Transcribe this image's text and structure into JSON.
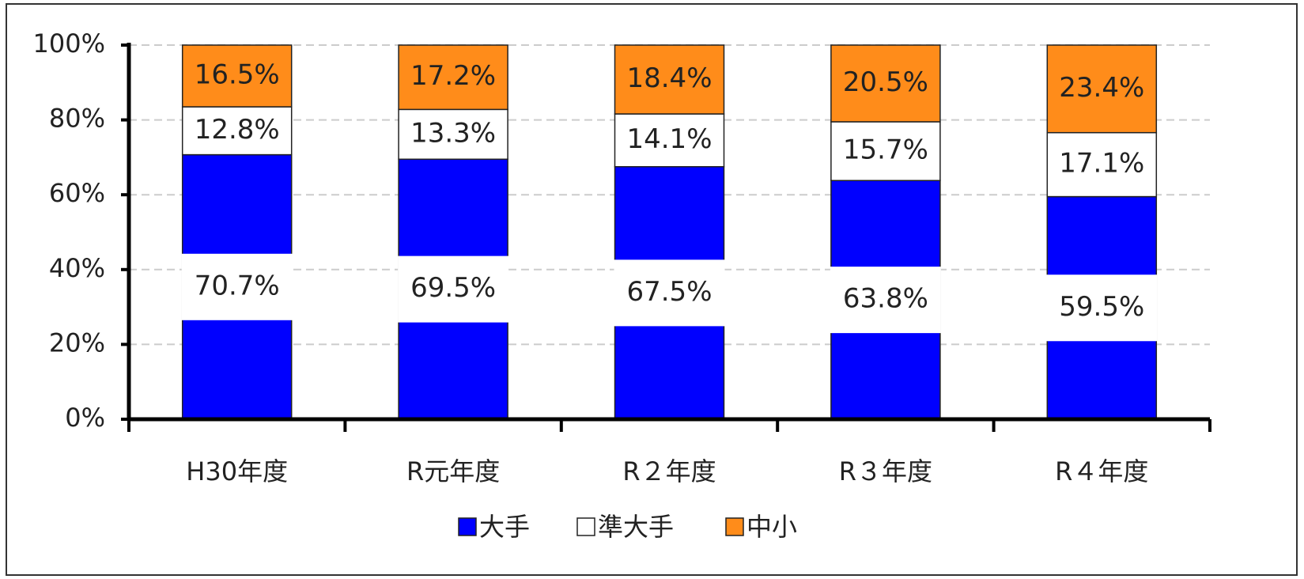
{
  "chart_data": {
    "type": "stacked_bar",
    "categories": [
      "H30年度",
      "R元年度",
      "R２年度",
      "R３年度",
      "R４年度"
    ],
    "series": [
      {
        "name": "大手",
        "color": "#0000ff",
        "values": [
          70.7,
          69.5,
          67.5,
          63.8,
          59.5
        ],
        "value_labels": [
          "70.7%",
          "69.5%",
          "67.5%",
          "63.8%",
          "59.5%"
        ]
      },
      {
        "name": "準大手",
        "color": "#ffffff",
        "values": [
          12.8,
          13.3,
          14.1,
          15.7,
          17.1
        ],
        "value_labels": [
          "12.8%",
          "13.3%",
          "14.1%",
          "15.7%",
          "17.1%"
        ]
      },
      {
        "name": "中小",
        "color": "#ff8c1a",
        "values": [
          16.5,
          17.2,
          18.4,
          20.5,
          23.4
        ],
        "value_labels": [
          "16.5%",
          "17.2%",
          "18.4%",
          "20.5%",
          "23.4%"
        ]
      }
    ],
    "ylim": [
      0,
      100
    ],
    "yticks": [
      {
        "value": 0,
        "label": "0%"
      },
      {
        "value": 20,
        "label": "20%"
      },
      {
        "value": 40,
        "label": "40%"
      },
      {
        "value": 60,
        "label": "60%"
      },
      {
        "value": 80,
        "label": "80%"
      },
      {
        "value": 100,
        "label": "100%"
      }
    ],
    "grid": true,
    "legend": "bottom"
  }
}
